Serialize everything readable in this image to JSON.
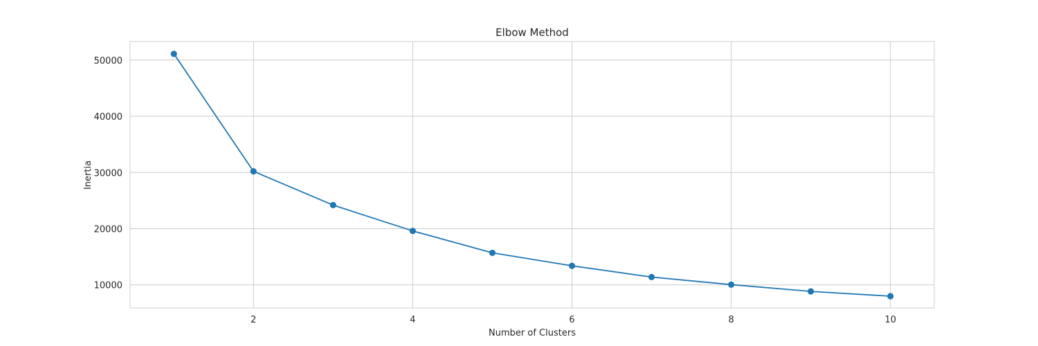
{
  "chart_data": {
    "type": "line",
    "title": "Elbow Method",
    "xlabel": "Number of Clusters",
    "ylabel": "Inertia",
    "x": [
      1,
      2,
      3,
      4,
      5,
      6,
      7,
      8,
      9,
      10
    ],
    "series": [
      {
        "values": [
          51100,
          30200,
          24200,
          19600,
          15700,
          13400,
          11400,
          10050,
          8850,
          8000
        ],
        "color": "#1f77b4",
        "marker": "circle"
      }
    ],
    "xticks": [
      2,
      4,
      6,
      8,
      10
    ],
    "yticks": [
      10000,
      20000,
      30000,
      40000,
      50000
    ],
    "xlim": [
      0.45,
      10.55
    ],
    "ylim": [
      5905,
      53295
    ],
    "grid": true,
    "legend": "none"
  }
}
